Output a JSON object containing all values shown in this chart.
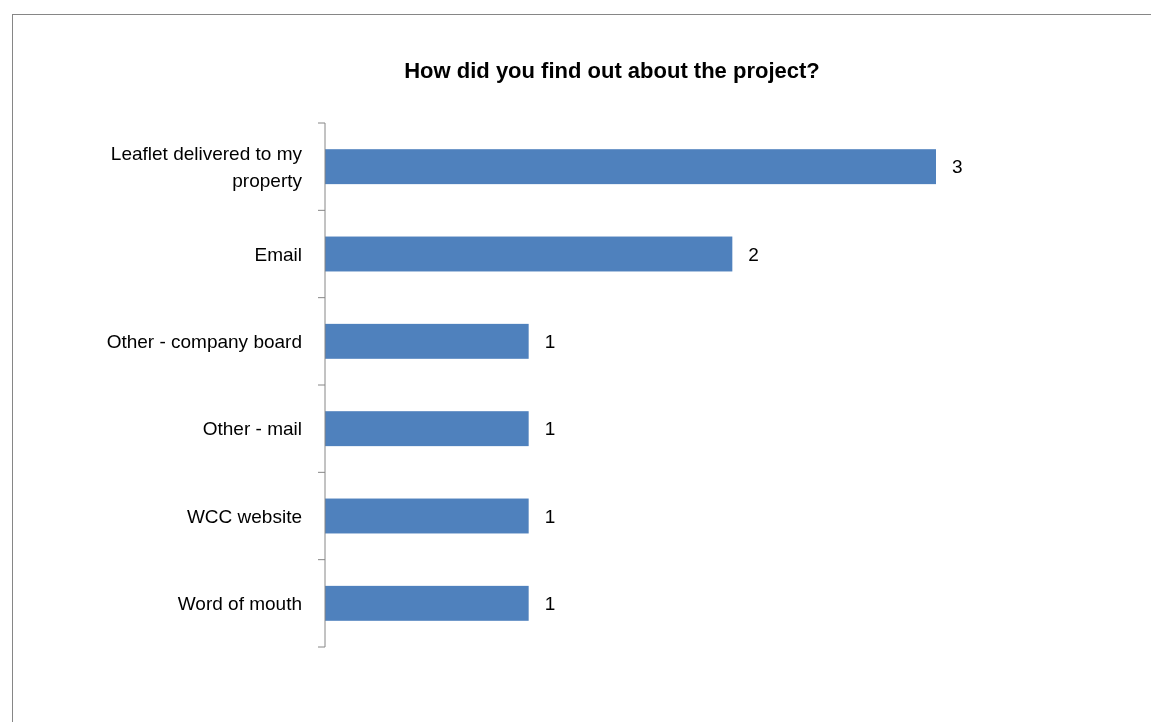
{
  "chart_data": {
    "type": "bar",
    "orientation": "horizontal",
    "title": "How did you find out about the project?",
    "categories": [
      "Leaflet delivered to my property",
      "Email",
      "Other - company board",
      "Other - mail",
      "WCC website",
      "Word of mouth"
    ],
    "values": [
      3,
      2,
      1,
      1,
      1,
      1
    ],
    "color": "#4f81bd",
    "data_labels": true
  }
}
